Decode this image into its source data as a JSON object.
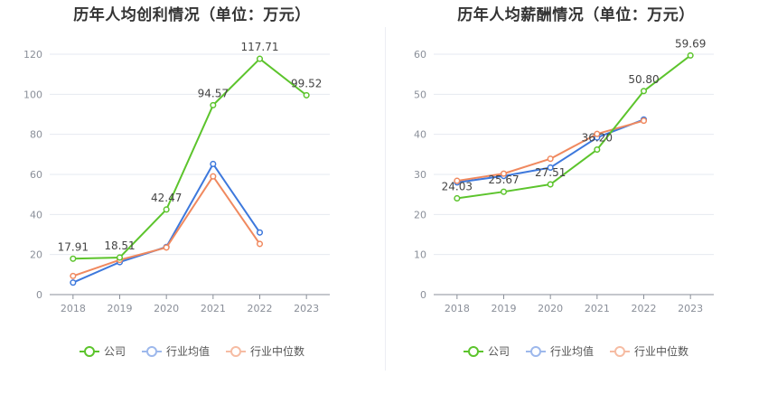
{
  "chart_data": [
    {
      "type": "line",
      "title": "历年人均创利情况（单位：万元）",
      "categories": [
        "2018",
        "2019",
        "2020",
        "2021",
        "2022",
        "2023"
      ],
      "ylim": [
        0,
        120
      ],
      "yticks": [
        0,
        20,
        40,
        60,
        80,
        100,
        120
      ],
      "grid": true,
      "legend_position": "bottom",
      "series": [
        {
          "name": "公司",
          "color": "#5cc42c",
          "values": [
            17.91,
            18.51,
            42.47,
            94.57,
            117.71,
            99.52
          ],
          "labels": [
            "17.91",
            "18.51",
            "42.47",
            "94.57",
            "117.71",
            "99.52"
          ]
        },
        {
          "name": "行业均值",
          "color": "#3d78dc",
          "values": [
            6.0,
            16.2,
            23.8,
            65.2,
            31.0,
            null
          ]
        },
        {
          "name": "行业中位数",
          "color": "#f0895f",
          "values": [
            9.3,
            17.3,
            23.5,
            59.0,
            25.3,
            null
          ]
        }
      ]
    },
    {
      "type": "line",
      "title": "历年人均薪酬情况（单位：万元）",
      "categories": [
        "2018",
        "2019",
        "2020",
        "2021",
        "2022",
        "2023"
      ],
      "ylim": [
        0,
        60
      ],
      "yticks": [
        0,
        10,
        20,
        30,
        40,
        50,
        60
      ],
      "grid": true,
      "legend_position": "bottom",
      "series": [
        {
          "name": "公司",
          "color": "#5cc42c",
          "values": [
            24.03,
            25.67,
            27.51,
            36.2,
            50.8,
            59.69
          ],
          "labels": [
            "24.03",
            "25.67",
            "27.51",
            "36.20",
            "50.80",
            "59.69"
          ]
        },
        {
          "name": "行业均值",
          "color": "#3d78dc",
          "values": [
            28.0,
            29.6,
            31.7,
            39.2,
            43.7,
            null
          ]
        },
        {
          "name": "行业中位数",
          "color": "#f0895f",
          "values": [
            28.4,
            30.2,
            33.9,
            40.1,
            43.4,
            null
          ]
        }
      ]
    }
  ]
}
